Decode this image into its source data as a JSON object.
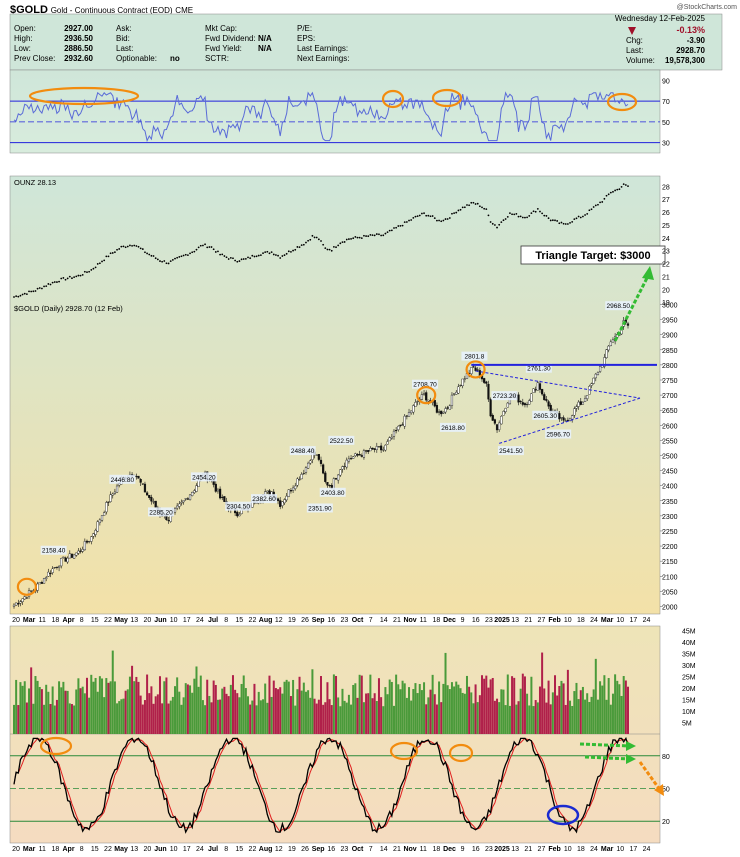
{
  "header": {
    "symbol": "$GOLD",
    "name": "Gold - Continuous Contract (EOD)",
    "exchange": "CME",
    "date": "Wednesday  12-Feb-2025",
    "watermark": "@StockCharts.com"
  },
  "quote": {
    "open_label": "Open:",
    "open": "2927.00",
    "high_label": "High:",
    "high": "2936.50",
    "low_label": "Low:",
    "low": "2886.50",
    "prev_label": "Prev Close:",
    "prev": "2932.60",
    "ask_label": "Ask:",
    "bid_label": "Bid:",
    "last_label": "Last:",
    "optionable_label": "Optionable:",
    "optionable": "no",
    "mktcap_label": "Mkt Cap:",
    "fwddiv_label": "Fwd Dividend:",
    "fwddiv": "N/A",
    "fwdyield_label": "Fwd Yield:",
    "fwdyield": "N/A",
    "sctr_label": "SCTR:",
    "pe_label": "P/E:",
    "eps_label": "EPS:",
    "lastearn_label": "Last Earnings:",
    "nextearn_label": "Next Earnings:",
    "pct": "-0.13%",
    "chg_label": "Chg:",
    "chg": "-3.90",
    "last_label2": "Last:",
    "last": "2928.70",
    "vol_label": "Volume:",
    "vol": "19,578,300"
  },
  "colors": {
    "panel_top": "#cfe6d9",
    "panel_bottom": "#f3e1a8",
    "osc_bg": "#f5dcc0",
    "rsi_line": "#5a6bd8",
    "line_blue": "#2222dd",
    "candle": "#111111",
    "highlight": "#f28c0f",
    "arrow_green": "#33bb33",
    "arrow_orange": "#f28c0f",
    "stoch_k": "#000000",
    "stoch_d": "#e02020",
    "vol_up": "#4a9a3a",
    "vol_down": "#b0204a"
  },
  "chart_data": [
    {
      "panel": "rsi",
      "type": "line",
      "yticks": [
        90,
        70,
        50,
        30
      ],
      "ylim": [
        20,
        100
      ],
      "reference_lines": [
        70,
        30
      ],
      "midline": 50
    },
    {
      "panel": "ounz",
      "type": "line",
      "label": "OUNZ 28.13",
      "ylim": [
        18.7,
        28.8
      ],
      "yticks": [
        28,
        27,
        26,
        25,
        24,
        23,
        22,
        21,
        20,
        19
      ],
      "last": 28.13
    },
    {
      "panel": "price",
      "type": "candlestick",
      "title": "$GOLD (Daily) 2928.70 (12 Feb)",
      "ylim": [
        1975,
        3015
      ],
      "yticks": [
        3000,
        2950,
        2900,
        2850,
        2800,
        2750,
        2700,
        2650,
        2600,
        2550,
        2500,
        2450,
        2400,
        2350,
        2300,
        2250,
        2200,
        2150,
        2100,
        2050,
        2000
      ],
      "annotations": [
        "2158.40",
        "2446.80",
        "2285.20",
        "2454.20",
        "2304.50",
        "2382.60",
        "2488.40",
        "2351.90",
        "2522.50",
        "2403.80",
        "2708.70",
        "2618.80",
        "2801.8",
        "2723.20",
        "2761.30",
        "2541.50",
        "2605.30",
        "2596.70",
        "2968.50"
      ],
      "resistance": 2800,
      "triangle_target": "Triangle Target: $3000"
    },
    {
      "panel": "volume",
      "type": "bar",
      "yticks": [
        "45M",
        "40M",
        "35M",
        "30M",
        "25M",
        "20M",
        "15M",
        "10M",
        "5M"
      ],
      "ylim": [
        0,
        47
      ]
    },
    {
      "panel": "stochastic",
      "type": "line",
      "yticks": [
        80,
        50,
        20
      ],
      "ylim": [
        0,
        100
      ],
      "reference_lines": [
        80,
        20
      ]
    }
  ],
  "xaxis": {
    "labels": [
      "20",
      "Mar",
      "11",
      "18",
      "Apr",
      "8",
      "15",
      "22",
      "May",
      "13",
      "20",
      "Jun",
      "10",
      "17",
      "24",
      "Jul",
      "8",
      "15",
      "22",
      "Aug",
      "12",
      "19",
      "26",
      "Sep",
      "16",
      "23",
      "Oct",
      "7",
      "14",
      "21",
      "Nov",
      "11",
      "18",
      "Dec",
      "9",
      "16",
      "23",
      "2025",
      "13",
      "21",
      "27",
      "Feb",
      "10",
      "18",
      "24",
      "Mar",
      "10",
      "17",
      "24"
    ]
  }
}
